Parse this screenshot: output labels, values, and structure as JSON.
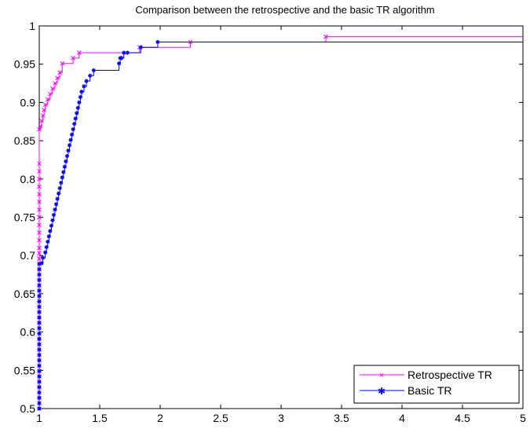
{
  "chart_data": {
    "type": "line",
    "title": "Comparison between the retrospective and the basic TR algorithm",
    "xlabel": "",
    "ylabel": "",
    "xlim": [
      1,
      5
    ],
    "ylim": [
      0.5,
      1
    ],
    "x_ticks": [
      "1",
      "1.5",
      "2",
      "2.5",
      "3",
      "3.5",
      "4",
      "4.5",
      "5"
    ],
    "y_ticks": [
      "0.5",
      "0.55",
      "0.6",
      "0.65",
      "0.7",
      "0.75",
      "0.8",
      "0.85",
      "0.9",
      "0.95",
      "1"
    ],
    "step": true,
    "grid": false,
    "legend_position": "bottom-right",
    "series": [
      {
        "name": "Retrospective TR",
        "color": "#ff00ff",
        "marker": "x",
        "x": [
          1.0,
          1.0,
          1.0,
          1.0,
          1.0,
          1.0,
          1.0,
          1.0,
          1.0,
          1.0,
          1.0,
          1.0,
          1.0,
          1.0,
          1.0,
          1.0,
          1.0,
          1.0,
          1.0,
          1.0,
          1.0,
          1.0,
          1.0,
          1.0,
          1.0,
          1.0,
          1.0,
          1.0,
          1.0,
          1.0,
          1.0,
          1.0,
          1.0,
          1.0,
          1.0,
          1.0,
          1.0,
          1.0,
          1.0,
          1.0,
          1.0,
          1.0,
          1.0,
          1.01,
          1.02,
          1.03,
          1.04,
          1.05,
          1.07,
          1.09,
          1.11,
          1.13,
          1.15,
          1.17,
          1.19,
          1.28,
          1.33,
          1.83,
          2.25,
          3.37,
          5.0
        ],
        "y": [
          0.5,
          0.507,
          0.514,
          0.521,
          0.528,
          0.535,
          0.542,
          0.549,
          0.556,
          0.563,
          0.57,
          0.577,
          0.584,
          0.591,
          0.598,
          0.605,
          0.612,
          0.619,
          0.626,
          0.633,
          0.64,
          0.647,
          0.654,
          0.661,
          0.668,
          0.675,
          0.682,
          0.689,
          0.696,
          0.703,
          0.71,
          0.72,
          0.73,
          0.74,
          0.75,
          0.76,
          0.77,
          0.78,
          0.79,
          0.8,
          0.81,
          0.82,
          0.865,
          0.869,
          0.876,
          0.883,
          0.89,
          0.897,
          0.904,
          0.911,
          0.918,
          0.925,
          0.932,
          0.939,
          0.951,
          0.958,
          0.965,
          0.972,
          0.979,
          0.986,
          0.986
        ]
      },
      {
        "name": "Basic TR",
        "color": "#0000ff",
        "marker": "*",
        "x": [
          1.0,
          1.0,
          1.0,
          1.0,
          1.0,
          1.0,
          1.0,
          1.0,
          1.0,
          1.0,
          1.0,
          1.0,
          1.0,
          1.0,
          1.0,
          1.0,
          1.0,
          1.0,
          1.0,
          1.0,
          1.0,
          1.0,
          1.0,
          1.0,
          1.0,
          1.0,
          1.0,
          1.0,
          1.02,
          1.03,
          1.05,
          1.06,
          1.07,
          1.08,
          1.09,
          1.1,
          1.11,
          1.12,
          1.13,
          1.14,
          1.15,
          1.16,
          1.17,
          1.18,
          1.19,
          1.2,
          1.21,
          1.22,
          1.23,
          1.24,
          1.25,
          1.26,
          1.27,
          1.28,
          1.29,
          1.3,
          1.31,
          1.32,
          1.33,
          1.34,
          1.35,
          1.37,
          1.39,
          1.42,
          1.45,
          1.66,
          1.67,
          1.68,
          1.7,
          1.73,
          1.84,
          1.98,
          5.0
        ],
        "y": [
          0.5,
          0.507,
          0.514,
          0.521,
          0.528,
          0.535,
          0.542,
          0.549,
          0.556,
          0.563,
          0.57,
          0.577,
          0.584,
          0.591,
          0.598,
          0.605,
          0.612,
          0.619,
          0.626,
          0.633,
          0.64,
          0.647,
          0.654,
          0.661,
          0.668,
          0.675,
          0.682,
          0.689,
          0.69,
          0.697,
          0.704,
          0.711,
          0.718,
          0.725,
          0.732,
          0.739,
          0.746,
          0.753,
          0.76,
          0.767,
          0.774,
          0.781,
          0.788,
          0.795,
          0.802,
          0.809,
          0.816,
          0.823,
          0.83,
          0.837,
          0.844,
          0.851,
          0.858,
          0.865,
          0.872,
          0.879,
          0.886,
          0.893,
          0.9,
          0.907,
          0.914,
          0.921,
          0.928,
          0.935,
          0.942,
          0.951,
          0.958,
          0.958,
          0.965,
          0.965,
          0.972,
          0.979,
          0.979
        ]
      }
    ]
  }
}
